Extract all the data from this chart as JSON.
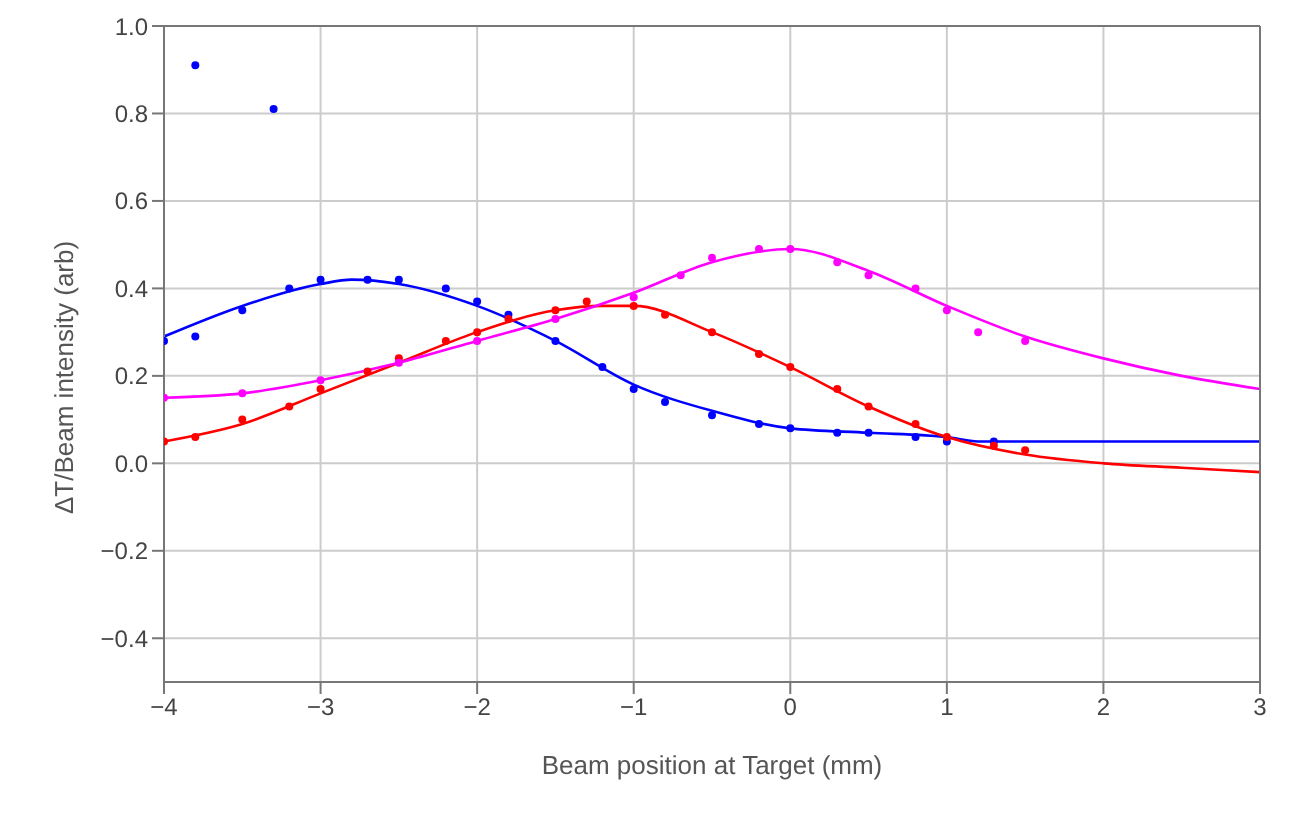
{
  "chart_data": {
    "type": "scatter",
    "xlabel": "Beam position at Target (mm)",
    "ylabel": "ΔT/Beam intensity (arb)",
    "xlim": [
      -4,
      3
    ],
    "xticks": [
      {
        "value": -4,
        "label": "−4"
      },
      {
        "value": -3,
        "label": "−3"
      },
      {
        "value": -2,
        "label": "−2"
      },
      {
        "value": -1,
        "label": "−1"
      },
      0,
      1,
      2,
      3
    ],
    "ylim": [
      -0.5,
      1.0
    ],
    "yticks": [
      {
        "value": -0.4,
        "label": "−0.4"
      },
      {
        "value": -0.2,
        "label": "−0.2"
      },
      {
        "value": 0,
        "label": "0.0"
      },
      0.2,
      0.4,
      0.6,
      0.8,
      {
        "value": 1,
        "label": "1.0"
      }
    ],
    "grid": true,
    "series": [
      {
        "marker": "circle",
        "color": "#0000ff",
        "x": [
          -4,
          -3.8,
          -3.5,
          -3.2,
          -3,
          -2.7,
          -2.5,
          -2.2,
          -2,
          -1.8,
          -1.5,
          -1.2,
          -1,
          -0.8,
          -0.5,
          -0.2,
          0,
          0.3,
          0.5,
          0.8,
          1,
          1.3,
          -3.8,
          -3.3
        ],
        "values": [
          0.28,
          0.29,
          0.35,
          0.4,
          0.42,
          0.42,
          0.42,
          0.4,
          0.37,
          0.34,
          0.28,
          0.22,
          0.17,
          0.14,
          0.11,
          0.09,
          0.08,
          0.07,
          0.07,
          0.06,
          0.05,
          0.05,
          0.91,
          0.81
        ]
      },
      {
        "marker": "circle",
        "color": "#ff0000",
        "x": [
          -4,
          -3.8,
          -3.5,
          -3.2,
          -3,
          -2.7,
          -2.5,
          -2.2,
          -2,
          -1.8,
          -1.5,
          -1.3,
          -1,
          -0.8,
          -0.5,
          -0.2,
          0,
          0.3,
          0.5,
          0.8,
          1,
          1.3,
          1.5
        ],
        "values": [
          0.05,
          0.06,
          0.1,
          0.13,
          0.17,
          0.21,
          0.24,
          0.28,
          0.3,
          0.33,
          0.35,
          0.37,
          0.36,
          0.34,
          0.3,
          0.25,
          0.22,
          0.17,
          0.13,
          0.09,
          0.06,
          0.04,
          0.03
        ]
      },
      {
        "marker": "circle",
        "color": "#ff00ff",
        "x": [
          -4,
          -3.5,
          -3,
          -2.5,
          -2,
          -1.5,
          -1,
          -0.7,
          -0.5,
          -0.2,
          0,
          0.3,
          0.5,
          0.8,
          1,
          1.2,
          1.5
        ],
        "values": [
          0.15,
          0.16,
          0.19,
          0.23,
          0.28,
          0.33,
          0.38,
          0.43,
          0.47,
          0.49,
          0.49,
          0.46,
          0.43,
          0.4,
          0.35,
          0.3,
          0.28
        ]
      },
      {
        "type": "line",
        "marker": "none",
        "color": "#0000ff",
        "x": [
          -4,
          -3.5,
          -3,
          -2.8,
          -2.5,
          -2,
          -1.5,
          -1,
          -0.5,
          0,
          0.5,
          1,
          1.2,
          2,
          3
        ],
        "values": [
          0.29,
          0.36,
          0.41,
          0.42,
          0.41,
          0.36,
          0.28,
          0.18,
          0.12,
          0.08,
          0.07,
          0.06,
          0.05,
          0.05,
          0.05
        ]
      },
      {
        "type": "line",
        "marker": "none",
        "color": "#ff0000",
        "x": [
          -4,
          -3.5,
          -3,
          -2.5,
          -2,
          -1.5,
          -1.2,
          -1,
          -0.5,
          0,
          0.5,
          1,
          1.5,
          2,
          2.5,
          3
        ],
        "values": [
          0.05,
          0.09,
          0.16,
          0.23,
          0.3,
          0.35,
          0.36,
          0.36,
          0.3,
          0.22,
          0.13,
          0.06,
          0.02,
          0,
          -0.01,
          -0.02
        ]
      },
      {
        "type": "line",
        "marker": "none",
        "color": "#ff00ff",
        "x": [
          -4,
          -3.5,
          -3,
          -2.5,
          -2,
          -1.5,
          -1,
          -0.5,
          0,
          0.5,
          1,
          1.5,
          2,
          2.5,
          3
        ],
        "values": [
          0.15,
          0.16,
          0.19,
          0.23,
          0.28,
          0.33,
          0.39,
          0.46,
          0.49,
          0.44,
          0.36,
          0.29,
          0.24,
          0.2,
          0.17
        ]
      }
    ]
  }
}
